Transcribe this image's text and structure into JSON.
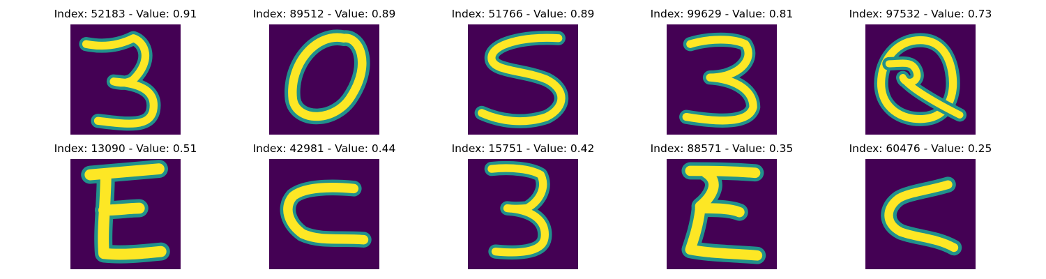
{
  "figure": {
    "background": "#440154",
    "palette": [
      "#440154",
      "#3b528b",
      "#21918c",
      "#5ec962",
      "#fde725"
    ],
    "panels": [
      {
        "title": "Index: 52183 - Value: 0.91",
        "glyph": "3"
      },
      {
        "title": "Index: 89512 - Value: 0.89",
        "glyph": "O"
      },
      {
        "title": "Index: 51766 - Value: 0.89",
        "glyph": "S"
      },
      {
        "title": "Index: 99629 - Value: 0.81",
        "glyph": "3"
      },
      {
        "title": "Index: 97532 - Value: 0.73",
        "glyph": "Q"
      },
      {
        "title": "Index: 13090 - Value: 0.51",
        "glyph": "E"
      },
      {
        "title": "Index: 42981 - Value: 0.44",
        "glyph": "C"
      },
      {
        "title": "Index: 15751 - Value: 0.42",
        "glyph": "3"
      },
      {
        "title": "Index: 88571 - Value: 0.35",
        "glyph": "E"
      },
      {
        "title": "Index: 60476 - Value: 0.25",
        "glyph": "C"
      }
    ]
  }
}
